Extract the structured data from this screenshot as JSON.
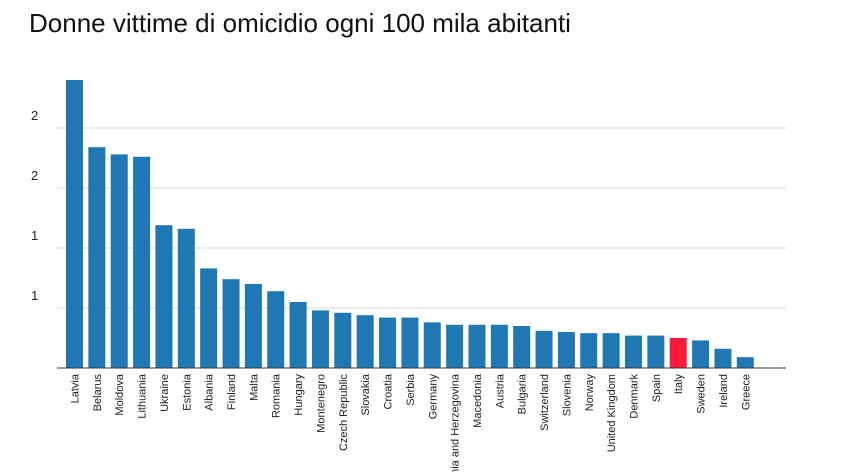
{
  "chart_data": {
    "type": "bar",
    "title": "Donne vittime di omicidio ogni 100 mila abitanti",
    "xlabel": "",
    "ylabel": "",
    "ylim": [
      0,
      2.4
    ],
    "y_ticks": [
      {
        "value": 0.5,
        "label": "1"
      },
      {
        "value": 1.0,
        "label": "1"
      },
      {
        "value": 1.5,
        "label": "2"
      },
      {
        "value": 2.0,
        "label": "2"
      }
    ],
    "grid": true,
    "legend": "none",
    "colors": {
      "default": "#1f77b4",
      "highlight": "#ff1a3c"
    },
    "highlight": "Italy",
    "categories": [
      "Latvia",
      "Belarus",
      "Moldova",
      "Lithuania",
      "Ukraine",
      "Estonia",
      "Albania",
      "Finland",
      "Malta",
      "Romania",
      "Hungary",
      "Montenegro",
      "Czech Republic",
      "Slovakia",
      "Croatia",
      "Serbia",
      "Germany",
      "Bosnia and Herzegovina",
      "Macedonia",
      "Austria",
      "Bulgaria",
      "Switzerland",
      "Slovenia",
      "Norway",
      "United Kingdom",
      "Denmark",
      "Spain",
      "Italy",
      "Sweden",
      "Ireland",
      "Greece"
    ],
    "values": [
      2.4,
      1.84,
      1.78,
      1.76,
      1.19,
      1.16,
      0.83,
      0.74,
      0.7,
      0.64,
      0.55,
      0.48,
      0.46,
      0.44,
      0.42,
      0.42,
      0.38,
      0.36,
      0.36,
      0.36,
      0.35,
      0.31,
      0.3,
      0.29,
      0.29,
      0.27,
      0.27,
      0.25,
      0.23,
      0.16,
      0.09
    ]
  }
}
